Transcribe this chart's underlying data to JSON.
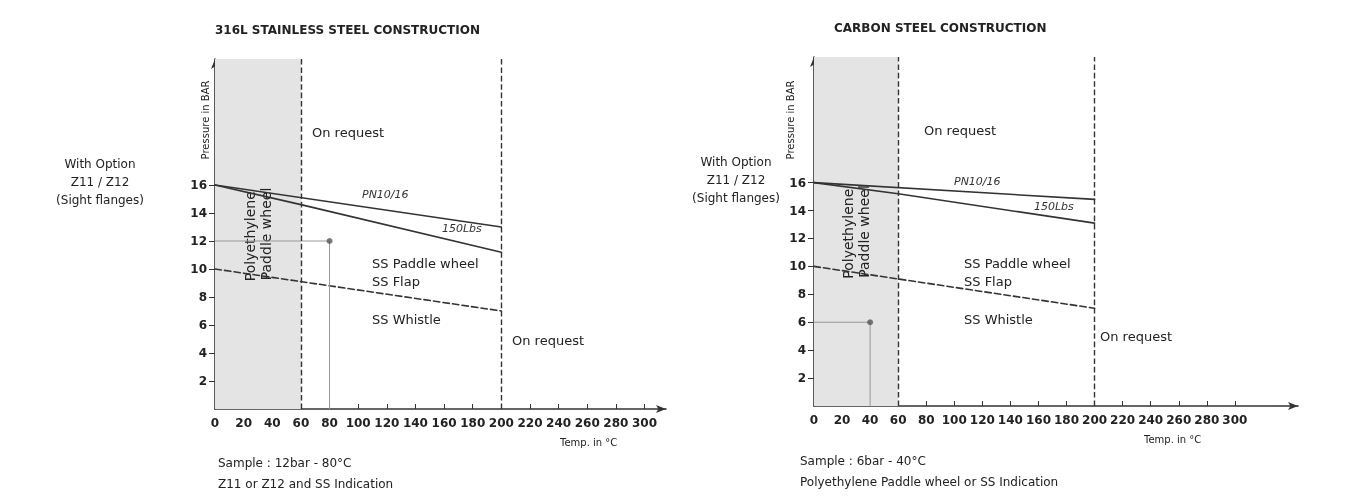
{
  "chart_data": [
    {
      "type": "line",
      "title": "316L STAINLESS STEEL CONSTRUCTION",
      "xlabel": "Temp. in °C",
      "ylabel": "Pressure in BAR",
      "xlim": [
        0,
        315
      ],
      "xticks": [
        0,
        20,
        40,
        60,
        80,
        100,
        120,
        140,
        160,
        180,
        200,
        220,
        240,
        260,
        280,
        300
      ],
      "ylim": [
        0,
        25
      ],
      "yticks": [
        2,
        4,
        6,
        8,
        10,
        12,
        14,
        16
      ],
      "grid": false,
      "legend": false,
      "marker": "none",
      "line_style": "solid",
      "series": [
        {
          "name": "PN10/16",
          "color": "#333333",
          "x": [
            0,
            200
          ],
          "values": [
            16,
            13
          ]
        },
        {
          "name": "150Lbs",
          "color": "#333333",
          "x": [
            0,
            60,
            200
          ],
          "values": [
            16,
            14.6,
            11.2
          ]
        },
        {
          "color": "#333333",
          "x": [
            0,
            200
          ],
          "values": [
            10,
            7
          ],
          "line_style": "dashed"
        },
        {
          "color": "#999999",
          "x": [
            0,
            80,
            80
          ],
          "values": [
            12,
            12,
            0
          ]
        },
        {
          "type": "scatter",
          "color": "#555555",
          "x": [
            80
          ],
          "values": [
            12
          ],
          "marker": "circle"
        }
      ],
      "ref_lines": [
        {
          "axis": "x",
          "value": 60,
          "line_style": "dashed",
          "color": "#333333"
        },
        {
          "axis": "x",
          "value": 200,
          "line_style": "dashed",
          "color": "#333333"
        }
      ],
      "bands": [
        {
          "axis": "x",
          "from": 0,
          "to": 60,
          "label": "Polyethylene Paddle wheel",
          "color": "#e4e4e4"
        }
      ],
      "annotations": [
        "On request",
        "On request",
        "SS Paddle wheel",
        "SS Flap",
        "SS Whistle",
        "With Option\nZ11 / Z12\n(Sight flanges)",
        "Sample : 12bar - 80°C",
        "Z11 or Z12 and SS Indication"
      ]
    },
    {
      "type": "line",
      "title": "CARBON STEEL CONSTRUCTION",
      "xlabel": "Temp. in °C",
      "ylabel": "Pressure in BAR",
      "xlim": [
        0,
        345
      ],
      "xticks": [
        0,
        20,
        40,
        60,
        80,
        100,
        120,
        140,
        160,
        180,
        200,
        220,
        240,
        260,
        280,
        300
      ],
      "ylim": [
        0,
        25
      ],
      "yticks": [
        2,
        4,
        6,
        8,
        10,
        12,
        14,
        16
      ],
      "grid": false,
      "legend": false,
      "marker": "none",
      "line_style": "solid",
      "series": [
        {
          "name": "PN10/16",
          "color": "#333333",
          "x": [
            0,
            200
          ],
          "values": [
            16,
            14.8
          ]
        },
        {
          "name": "150Lbs",
          "color": "#333333",
          "x": [
            0,
            60,
            200
          ],
          "values": [
            16,
            15.2,
            13.1
          ]
        },
        {
          "color": "#333333",
          "x": [
            0,
            200
          ],
          "values": [
            10,
            7
          ],
          "line_style": "dashed"
        },
        {
          "color": "#999999",
          "x": [
            0,
            40,
            40
          ],
          "values": [
            6,
            6,
            0
          ]
        },
        {
          "type": "scatter",
          "color": "#555555",
          "x": [
            40
          ],
          "values": [
            6
          ],
          "marker": "circle"
        }
      ],
      "ref_lines": [
        {
          "axis": "x",
          "value": 60,
          "line_style": "dashed",
          "color": "#333333"
        },
        {
          "axis": "x",
          "value": 200,
          "line_style": "dashed",
          "color": "#333333"
        }
      ],
      "bands": [
        {
          "axis": "x",
          "from": 0,
          "to": 60,
          "label": "Polyethylene Paddle wheel",
          "color": "#e4e4e4"
        }
      ],
      "annotations": [
        "On request",
        "On request",
        "SS Paddle wheel",
        "SS Flap",
        "SS Whistle",
        "With Option\nZ11 / Z12\n(Sight flanges)",
        "Sample : 6bar - 40°C",
        "Polyethylene Paddle wheel or SS Indication"
      ]
    }
  ]
}
